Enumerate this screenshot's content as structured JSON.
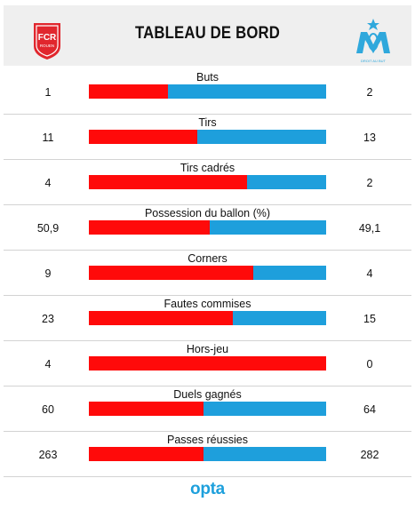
{
  "header": {
    "title": "TABLEAU DE BORD",
    "home_crest": {
      "icon": "fc-rouen-crest-icon",
      "text_top": "FCR",
      "text_bottom": "ROUEN",
      "color": "#e1262d"
    },
    "away_crest": {
      "icon": "olympique-marseille-crest-icon",
      "color": "#2fa8dc",
      "caption": "DROIT AU BUT"
    }
  },
  "colors": {
    "home": "#ff0a0a",
    "away": "#1e9fdc"
  },
  "stats": [
    {
      "label": "Buts",
      "home": "1",
      "away": "2",
      "home_share": 0.333
    },
    {
      "label": "Tirs",
      "home": "11",
      "away": "13",
      "home_share": 0.458
    },
    {
      "label": "Tirs cadrés",
      "home": "4",
      "away": "2",
      "home_share": 0.667
    },
    {
      "label": "Possession du ballon (%)",
      "home": "50,9",
      "away": "49,1",
      "home_share": 0.509
    },
    {
      "label": "Corners",
      "home": "9",
      "away": "4",
      "home_share": 0.692
    },
    {
      "label": "Fautes commises",
      "home": "23",
      "away": "15",
      "home_share": 0.605
    },
    {
      "label": "Hors-jeu",
      "home": "4",
      "away": "0",
      "home_share": 1.0
    },
    {
      "label": "Duels gagnés",
      "home": "60",
      "away": "64",
      "home_share": 0.484
    },
    {
      "label": "Passes réussies",
      "home": "263",
      "away": "282",
      "home_share": 0.483
    }
  ],
  "footer": {
    "brand": "opta"
  }
}
